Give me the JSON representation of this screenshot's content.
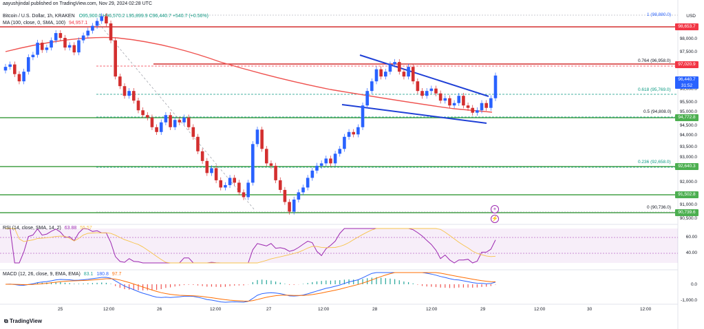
{
  "header": {
    "published": "aayushjindal published on TradingView.com, Nov 29, 2024 02:28 UTC",
    "symbol": "Bitcoin / U.S. Dollar, 1h, KRAKEN",
    "ohlc": "O95,900.0  H96,570.2  L95,899.9  C96,440.7  +540.7 (+0.56%)",
    "ma": "MA (100, close, 0, SMA, 100)",
    "ma_value": "94,957.1",
    "currency": "USD"
  },
  "price_axis": [
    "98,000.0",
    "97,500.0",
    "96,500.0",
    "96,000.0",
    "95,500.0",
    "95,000.0",
    "94,500.0",
    "94,000.0",
    "93,500.0",
    "93,000.0",
    "92,000.0",
    "91,000.0",
    "90,500.0"
  ],
  "price_tags": [
    {
      "label": "98,653.7",
      "color": "#f23645"
    },
    {
      "label": "97,020.9",
      "color": "#f23645"
    },
    {
      "label": "96,440.7",
      "sub": "31:52",
      "color": "#2962ff"
    },
    {
      "label": "94,772.8",
      "color": "#4caf50"
    },
    {
      "label": "92,640.3",
      "color": "#4caf50"
    },
    {
      "label": "91,502.8",
      "color": "#4caf50"
    },
    {
      "label": "90,739.6",
      "color": "#4caf50"
    }
  ],
  "fib_labels": [
    "1 (98,880.0)",
    "0.764 (96,958.0)",
    "0.618 (95,769.0)",
    "0.5 (94,808.0)",
    "0.236 (92,658.0)",
    "0 (90,736.0)"
  ],
  "rsi": {
    "label": "RSI (14, close, SMA, 14, 2)",
    "values": "63.88",
    "ma_val": "55.57",
    "axis": [
      "60.00",
      "40.00"
    ]
  },
  "macd": {
    "label": "MACD (12, 26, close, 9, EMA, EMA)",
    "v1": "83.1",
    "v2": "180.8",
    "v3": "97.7",
    "axis": [
      "0.0",
      "-1,000.0"
    ]
  },
  "time_axis": [
    "25",
    "12:00",
    "26",
    "12:00",
    "27",
    "12:00",
    "28",
    "12:00",
    "29",
    "12:00",
    "30",
    "12:00"
  ],
  "footer": {
    "brand": "TradingView"
  },
  "chart_data": {
    "type": "candlestick",
    "interval": "1h",
    "ylim": [
      90500,
      99000
    ],
    "candles_close": [
      96800,
      96900,
      96500,
      96200,
      96600,
      97200,
      97300,
      97800,
      97500,
      97600,
      97900,
      98200,
      98000,
      97600,
      97700,
      97400,
      97900,
      98100,
      98300,
      98500,
      98700,
      98900,
      98600,
      97900,
      96400,
      96000,
      95600,
      95800,
      95400,
      95000,
      94800,
      94700,
      94300,
      94100,
      94500,
      94800,
      94300,
      94600,
      94500,
      94700,
      94300,
      93900,
      93300,
      92900,
      92400,
      92600,
      92100,
      91800,
      91900,
      92200,
      92000,
      91600,
      91400,
      92000,
      93600,
      94200,
      93400,
      92800,
      92700,
      92100,
      91700,
      91200,
      90800,
      91300,
      91600,
      91800,
      92200,
      92500,
      92700,
      92800,
      93000,
      92800,
      93200,
      93400,
      93900,
      94100,
      94000,
      94300,
      95200,
      95800,
      96200,
      96700,
      96400,
      96600,
      96900,
      97000,
      96600,
      96400,
      96800,
      96200,
      95800,
      95600,
      95800,
      95900,
      95700,
      95400,
      95500,
      95200,
      95300,
      95600,
      95200,
      95100,
      94900,
      95000,
      95300,
      95100,
      95500,
      96440
    ]
  }
}
